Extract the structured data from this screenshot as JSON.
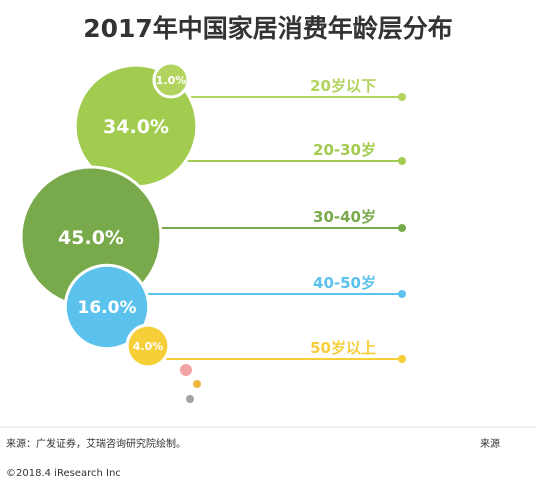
{
  "chart_data": {
    "type": "bubble",
    "title": "2017年中国家居消费年龄层分布",
    "categories": [
      "20岁以下",
      "20-30岁",
      "30-40岁",
      "40-50岁",
      "50岁以上"
    ],
    "values": [
      1.0,
      34.0,
      45.0,
      16.0,
      4.0
    ],
    "value_labels": [
      "1.0%",
      "34.0%",
      "45.0%",
      "16.0%",
      "4.0%"
    ],
    "unit": "%",
    "colors": [
      "#b2d35e",
      "#a2cc4f",
      "#78a94a",
      "#5bc2ee",
      "#f6ce38"
    ],
    "legend": "right"
  },
  "footer": {
    "source": "来源：广发证券，艾瑞咨询研究院绘制。",
    "source_right": "来源",
    "copyright": "©2018.4 iResearch Inc"
  },
  "decorative_dot_colors": [
    "#f3a3a6",
    "#f0b63e",
    "#a3a3a3"
  ]
}
